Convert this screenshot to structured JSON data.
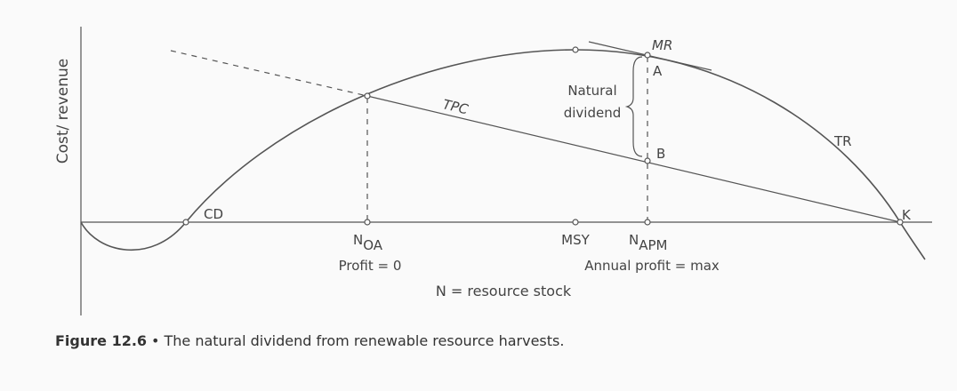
{
  "axis": {
    "y_label": "Cost/ revenue",
    "x_label": "N = resource stock"
  },
  "curves": {
    "tr": "TR",
    "tpc": "TPC",
    "mr": "MR"
  },
  "points": {
    "cd": "CD",
    "k": "K",
    "a": "A",
    "b": "B"
  },
  "annotation": {
    "natural_dividend": [
      "Natural",
      "dividend"
    ]
  },
  "x_markers": [
    {
      "main": "N",
      "sub": "OA",
      "note": "Profit = 0"
    },
    {
      "label": "MSY"
    },
    {
      "main": "N",
      "sub": "APM",
      "note": "Annual profit = max"
    }
  ],
  "caption": {
    "label": "Figure 12.6",
    "separator": "•",
    "text": "The natural dividend from renewable resource harvests."
  }
}
